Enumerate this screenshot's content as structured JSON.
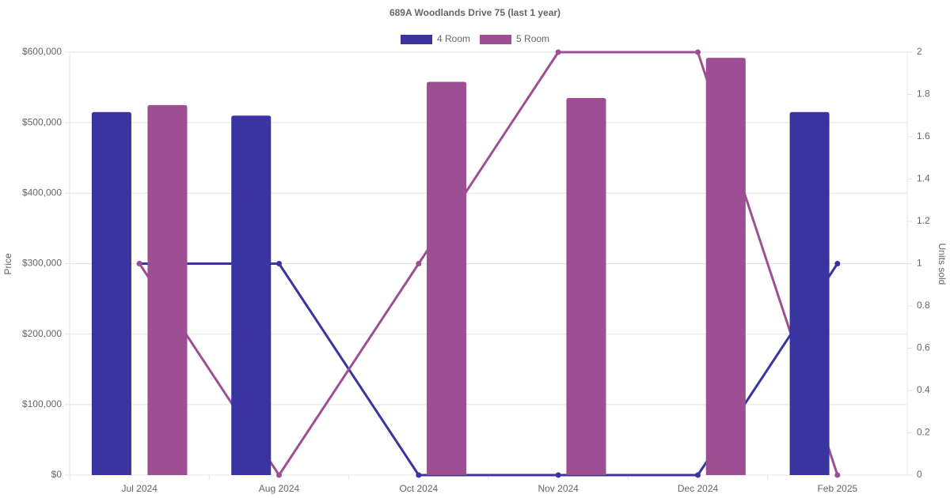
{
  "chart_data": {
    "type": "bar-line",
    "title": "689A Woodlands Drive 75 (last 1 year)",
    "categories": [
      "Jul 2024",
      "Aug 2024",
      "Oct 2024",
      "Nov 2024",
      "Dec 2024",
      "Feb 2025"
    ],
    "y_label": "Price",
    "y2_label": "Units sold",
    "series": [
      {
        "name": "4 Room",
        "color": "#3a34a0",
        "values": [
          515000,
          510000,
          null,
          null,
          null,
          515000
        ],
        "units_sold": [
          1,
          1,
          0,
          0,
          0,
          1
        ]
      },
      {
        "name": "5 Room",
        "color": "#9e4f94",
        "values": [
          525000,
          null,
          558000,
          535000,
          592000,
          null
        ],
        "units_sold": [
          1,
          0,
          1,
          2,
          2,
          0
        ]
      }
    ],
    "ylim": [
      0,
      600000
    ],
    "yticks": [
      {
        "value": 0,
        "label": "$0"
      },
      {
        "value": 100000,
        "label": "$100,000"
      },
      {
        "value": 200000,
        "label": "$200,000"
      },
      {
        "value": 300000,
        "label": "$300,000"
      },
      {
        "value": 400000,
        "label": "$400,000"
      },
      {
        "value": 500000,
        "label": "$500,000"
      },
      {
        "value": 600000,
        "label": "$600,000"
      }
    ],
    "y2lim": [
      0,
      2
    ],
    "y2ticks": [
      0,
      0.2,
      0.4,
      0.6,
      0.8,
      1,
      1.2,
      1.4,
      1.6,
      1.8,
      2
    ],
    "grid": true,
    "legend": "top"
  }
}
